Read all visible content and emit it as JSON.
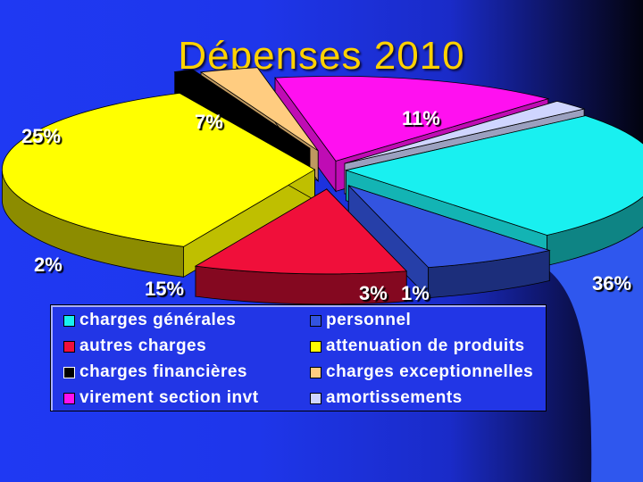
{
  "title": "Dépenses 2010",
  "chart_data": {
    "type": "pie",
    "title": "Dépenses 2010",
    "style": "3d-exploded",
    "categories": [
      "charges générales",
      "personnel",
      "autres charges",
      "attenuation de produits",
      "charges financières",
      "charges exceptionnelles",
      "virement section invt",
      "amortissements"
    ],
    "values": [
      25,
      7,
      11,
      36,
      1,
      3,
      15,
      2
    ],
    "labels": [
      "25%",
      "7%",
      "11%",
      "36%",
      "1%",
      "3%",
      "15%",
      "2%"
    ],
    "colors": [
      "#19f0f0",
      "#3354e0",
      "#f00f3a",
      "#ffff00",
      "#000000",
      "#ffcc80",
      "#ff10f0",
      "#cfd5ff"
    ],
    "legend_position": "bottom"
  }
}
